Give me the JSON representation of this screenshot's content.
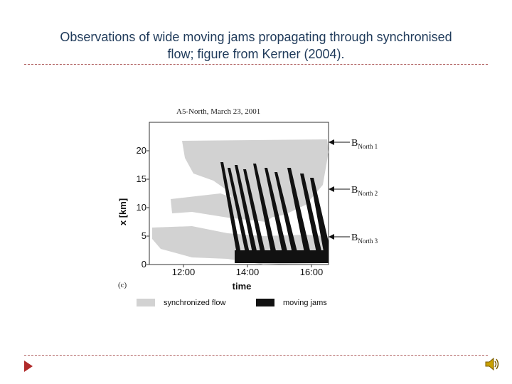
{
  "slide": {
    "title_line1": "Observations of wide moving jams propagating through synchronised",
    "title_line2": "flow; figure from Kerner (2004)."
  },
  "figure": {
    "panel_title": "A5-North, March 23, 2001",
    "panel_label": "(c)",
    "ylabel": "x [km]",
    "xlabel": "time",
    "yticks": [
      "0",
      "5",
      "10",
      "15",
      "20"
    ],
    "xticks": [
      "12:00",
      "14:00",
      "16:00"
    ],
    "bottlenecks": [
      {
        "main": "B",
        "sub": "North 1"
      },
      {
        "main": "B",
        "sub": "North 2"
      },
      {
        "main": "B",
        "sub": "North 3"
      }
    ],
    "legend": {
      "synchronized": "synchronized flow",
      "jams": "moving jams",
      "synchronized_color": "#d2d2d2",
      "jams_color": "#111111"
    }
  },
  "icons": {
    "nav": "next-slide-arrow-icon",
    "audio": "speaker-icon"
  }
}
